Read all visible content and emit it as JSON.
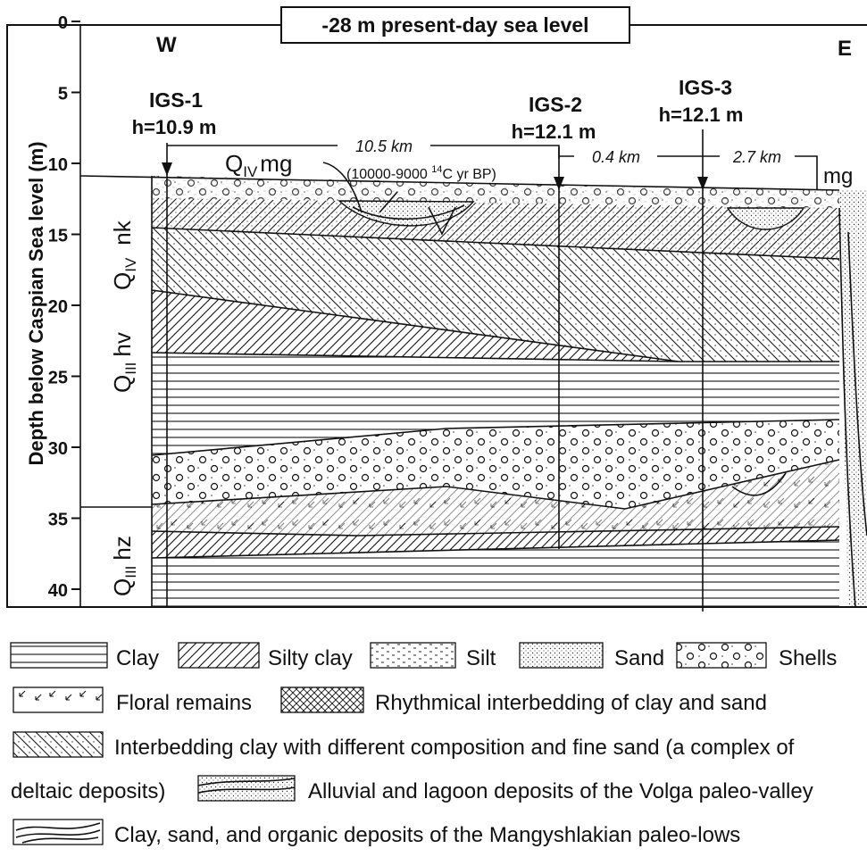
{
  "title": "-28 m present-day sea level",
  "axis": {
    "label": "Depth below Caspian Sea level (m)",
    "ticks": [
      0,
      5,
      10,
      15,
      20,
      25,
      30,
      35,
      40
    ]
  },
  "sides": {
    "west": "W",
    "east": "E"
  },
  "boreholes": [
    {
      "name": "IGS-1",
      "elevation": "h=10.9 m"
    },
    {
      "name": "IGS-2",
      "elevation": "h=12.1 m"
    },
    {
      "name": "IGS-3",
      "elevation": "h=12.1 m"
    }
  ],
  "distances": [
    "10.5 km",
    "0.4 km",
    "2.7 km"
  ],
  "units": {
    "mg": {
      "base": "Q",
      "sub": "IV",
      "suffix": "mg"
    },
    "nk": {
      "base": "Q",
      "sub": "IV",
      "suffix": "nk"
    },
    "hv": {
      "base": "Q",
      "sub": "III",
      "suffix": "hv"
    },
    "hz": {
      "base": "Q",
      "sub": "III",
      "suffix": "hz"
    },
    "mg_right": "mg"
  },
  "age": {
    "prefix": "(10000-9000 ",
    "sup": "14",
    "suffix": "C yr BP)"
  },
  "legend": [
    "Clay",
    "Silty clay",
    "Silt",
    "Sand",
    "Shells",
    "Floral remains",
    "Rhythmical interbedding of clay and sand",
    "Interbedding clay with different composition and fine sand (a complex of",
    "deltaic deposits)",
    "Alluvial and lagoon deposits of the Volga paleo-valley",
    "Clay, sand, and organic deposits of the Mangyshlakian paleo-lows"
  ]
}
